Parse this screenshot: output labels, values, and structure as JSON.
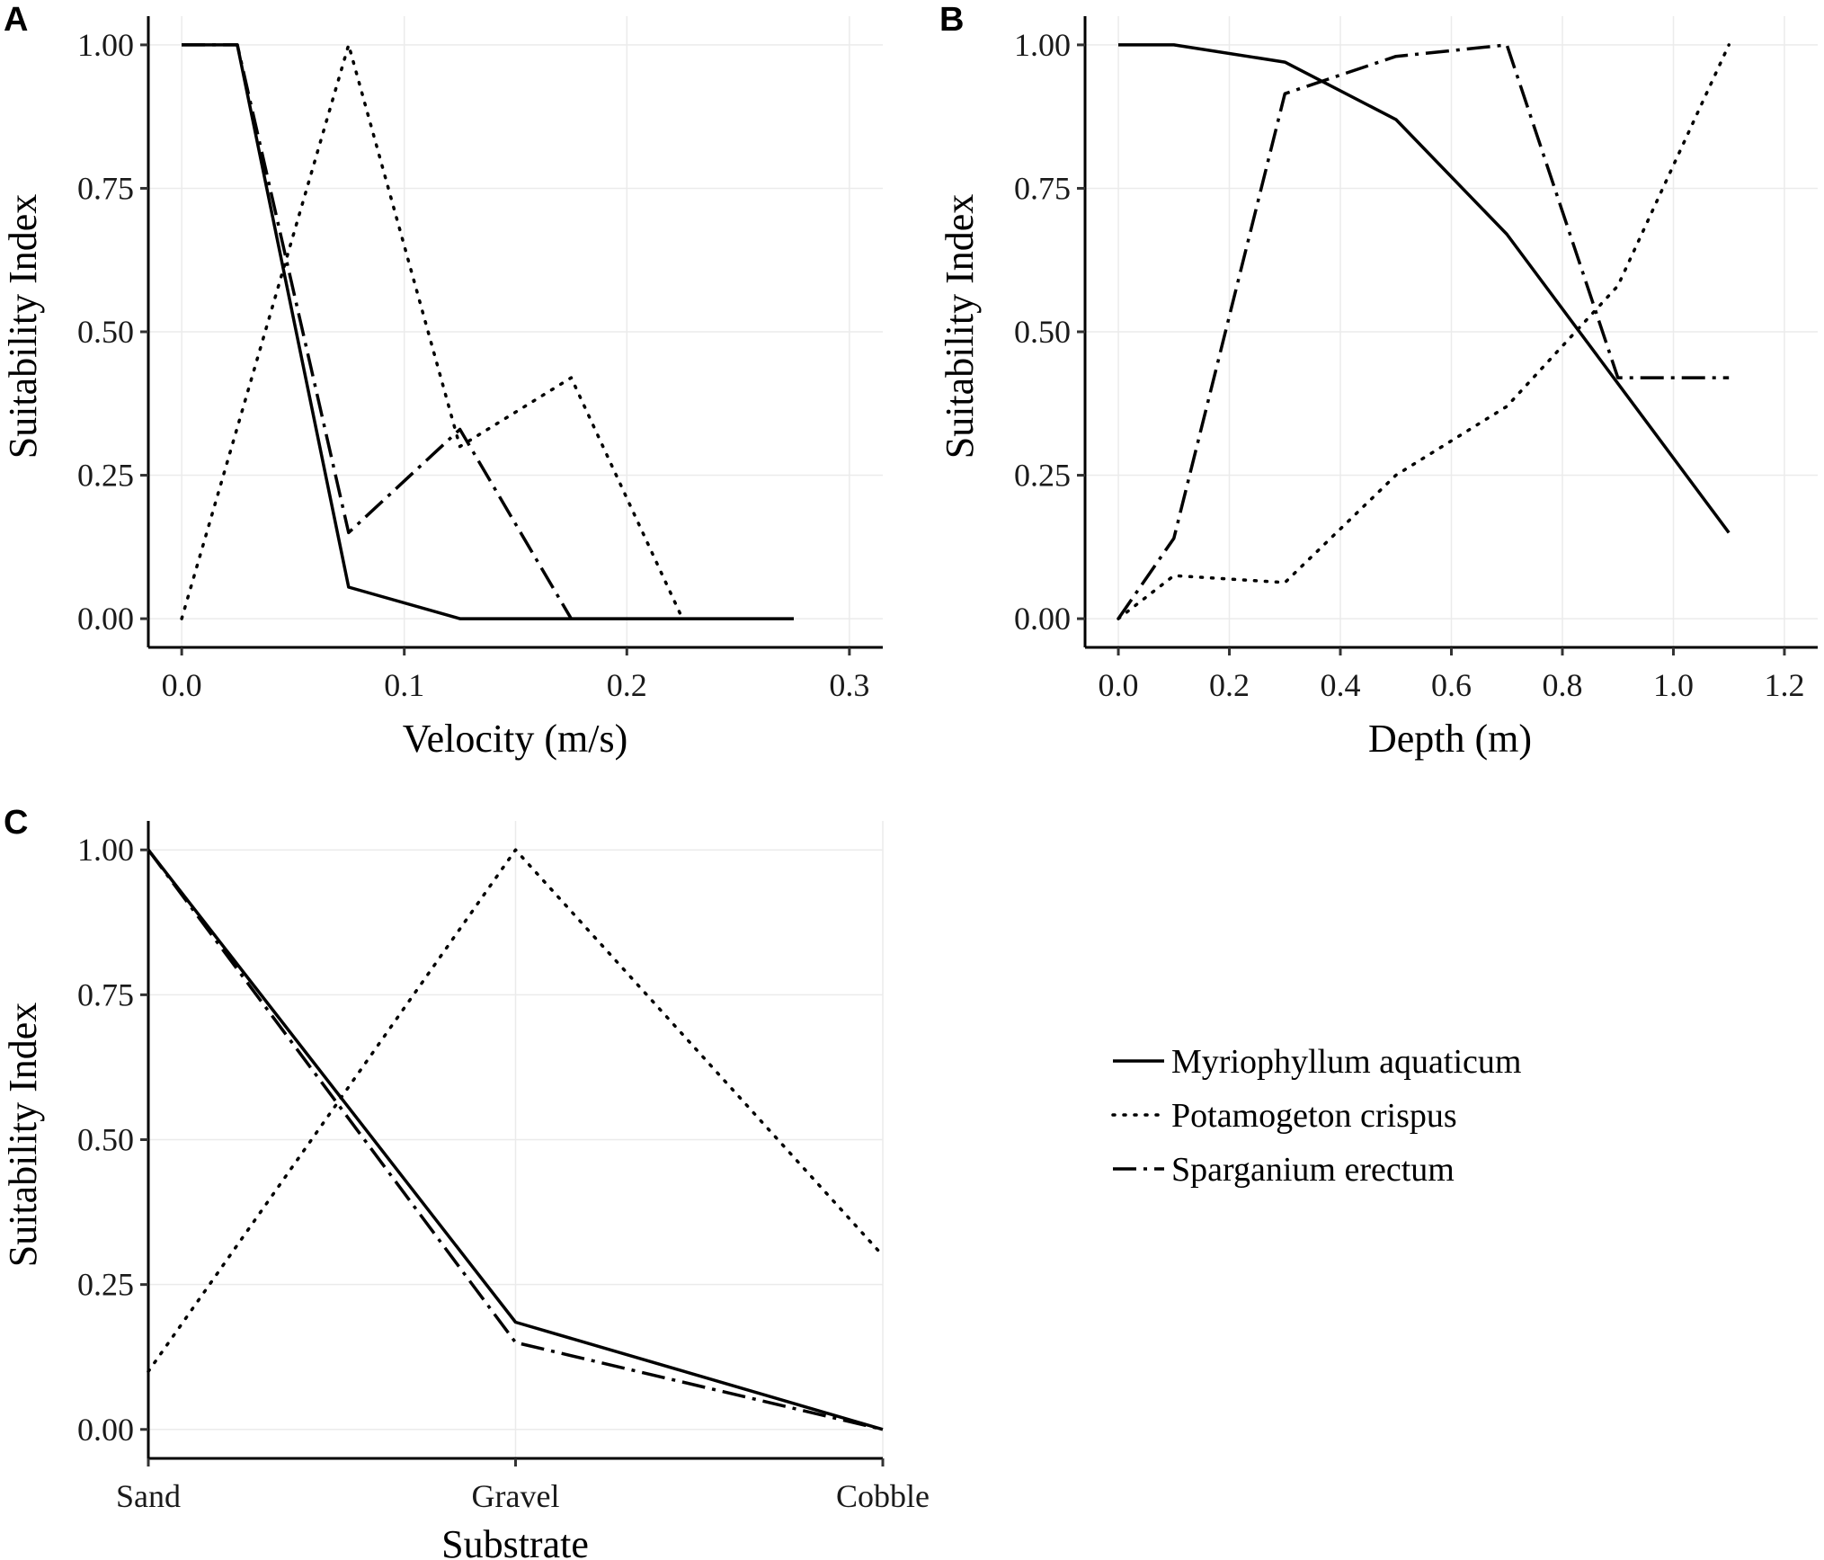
{
  "legend": {
    "entries": [
      {
        "name": "Myriophyllum aquaticum",
        "style": "solid"
      },
      {
        "name": "Potamogeton crispus",
        "style": "dotted"
      },
      {
        "name": "Sparganium erectum",
        "style": "dashdot"
      }
    ]
  },
  "chart_data": [
    {
      "panel": "A",
      "type": "line",
      "xlabel": "Velocity (m/s)",
      "ylabel": "Suitability Index",
      "xlim": [
        -0.015,
        0.315
      ],
      "ylim": [
        -0.05,
        1.05
      ],
      "xticks": [
        0.0,
        0.1,
        0.2,
        0.3
      ],
      "xtick_labels": [
        "0.0",
        "0.1",
        "0.2",
        "0.3"
      ],
      "yticks": [
        0,
        0.25,
        0.5,
        0.75,
        1.0
      ],
      "ytick_labels": [
        "0.00",
        "0.25",
        "0.50",
        "0.75",
        "1.00"
      ],
      "series": [
        {
          "name": "Myriophyllum aquaticum",
          "style": "solid",
          "x": [
            0.0,
            0.025,
            0.075,
            0.125,
            0.175,
            0.225,
            0.275
          ],
          "y": [
            1.0,
            1.0,
            0.055,
            0.0,
            0.0,
            0.0,
            0.0
          ]
        },
        {
          "name": "Potamogeton crispus",
          "style": "dotted",
          "x": [
            0.0,
            0.075,
            0.125,
            0.175,
            0.225
          ],
          "y": [
            0.0,
            1.0,
            0.3,
            0.42,
            0.0
          ]
        },
        {
          "name": "Sparganium erectum",
          "style": "dashdot",
          "x": [
            0.0,
            0.025,
            0.075,
            0.125,
            0.175
          ],
          "y": [
            1.0,
            1.0,
            0.15,
            0.33,
            0.0
          ]
        }
      ]
    },
    {
      "panel": "B",
      "type": "line",
      "xlabel": "Depth (m)",
      "ylabel": "Suitability Index",
      "xlim": [
        -0.06,
        1.26
      ],
      "ylim": [
        -0.05,
        1.05
      ],
      "xticks": [
        0.0,
        0.2,
        0.4,
        0.6,
        0.8,
        1.0,
        1.2
      ],
      "xtick_labels": [
        "0.0",
        "0.2",
        "0.4",
        "0.6",
        "0.8",
        "1.0",
        "1.2"
      ],
      "yticks": [
        0,
        0.25,
        0.5,
        0.75,
        1.0
      ],
      "ytick_labels": [
        "0.00",
        "0.25",
        "0.50",
        "0.75",
        "1.00"
      ],
      "series": [
        {
          "name": "Myriophyllum aquaticum",
          "style": "solid",
          "x": [
            0.0,
            0.1,
            0.3,
            0.5,
            0.7,
            0.9,
            1.1
          ],
          "y": [
            1.0,
            1.0,
            0.97,
            0.87,
            0.67,
            0.41,
            0.15
          ]
        },
        {
          "name": "Potamogeton crispus",
          "style": "dotted",
          "x": [
            0.0,
            0.1,
            0.3,
            0.5,
            0.7,
            0.9,
            1.1
          ],
          "y": [
            0.0,
            0.075,
            0.063,
            0.25,
            0.37,
            0.58,
            1.0
          ]
        },
        {
          "name": "Sparganium erectum",
          "style": "dashdot",
          "x": [
            0.0,
            0.1,
            0.3,
            0.5,
            0.7,
            0.9,
            1.1
          ],
          "y": [
            0.0,
            0.14,
            0.915,
            0.98,
            1.0,
            0.42,
            0.42
          ]
        }
      ]
    },
    {
      "panel": "C",
      "type": "line",
      "xlabel": "Substrate",
      "ylabel": "Suitability Index",
      "categories": [
        "Sand",
        "Gravel",
        "Cobble"
      ],
      "xlim": [
        0,
        2
      ],
      "ylim": [
        -0.05,
        1.05
      ],
      "yticks": [
        0,
        0.25,
        0.5,
        0.75,
        1.0
      ],
      "ytick_labels": [
        "0.00",
        "0.25",
        "0.50",
        "0.75",
        "1.00"
      ],
      "series": [
        {
          "name": "Myriophyllum aquaticum",
          "style": "solid",
          "x": [
            0,
            1,
            2
          ],
          "y": [
            1.0,
            0.185,
            0.0
          ]
        },
        {
          "name": "Potamogeton crispus",
          "style": "dotted",
          "x": [
            0,
            1,
            2
          ],
          "y": [
            0.1,
            1.0,
            0.3
          ]
        },
        {
          "name": "Sparganium erectum",
          "style": "dashdot",
          "x": [
            0,
            1,
            2
          ],
          "y": [
            1.0,
            0.15,
            0.0
          ]
        }
      ]
    }
  ]
}
